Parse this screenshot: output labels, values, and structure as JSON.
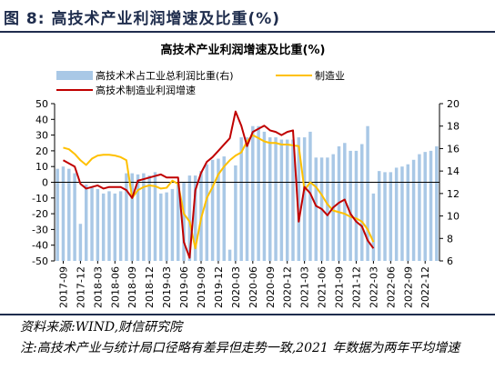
{
  "figure": {
    "label": "图 8:",
    "title": "高技术产业利润增速及比重(%)"
  },
  "source": "资料来源:WIND,财信研究院",
  "note": "注:高技术产业与统计局口径略有差异但走势一致,2021 年数据为两年平均增速",
  "colors": {
    "bar": "#a9c8e6",
    "manufacturing": "#ffc000",
    "hightech": "#c00000",
    "frame": "#1f2d4d"
  },
  "chart_data": {
    "type": "bar+line",
    "title": "高技术产业利润增速及比重(%)",
    "x_tick_labels": [
      "2017-09",
      "2017-12",
      "2018-03",
      "2018-06",
      "2018-09",
      "2018-12",
      "2019-03",
      "2019-06",
      "2019-09",
      "2019-12",
      "2020-03",
      "2020-06",
      "2020-09",
      "2020-12",
      "2021-03",
      "2021-06",
      "2021-09",
      "2021-12",
      "2022-03",
      "2022-06",
      "2022-09",
      "2022-12"
    ],
    "y_left": {
      "ticks": [
        "50",
        "40",
        "30",
        "20",
        "10",
        "0",
        "-10",
        "-20",
        "-30",
        "-40",
        "-50"
      ],
      "range": [
        -50,
        50
      ]
    },
    "y_right": {
      "ticks": [
        "20",
        "18",
        "16",
        "14",
        "12",
        "10",
        "8",
        "6"
      ],
      "range": [
        6,
        20
      ]
    },
    "legend": {
      "bar": "高技术术占工业总利润比重(右)",
      "manufacturing": "制造业",
      "hightech": "高技术制造业利润增速"
    },
    "grid": false,
    "series": [
      {
        "name": "高技术术占工业总利润比重(右)",
        "type": "bar",
        "axis": "right",
        "x_start": "2017-08",
        "values": [
          14.2,
          14.4,
          14.2,
          13.8,
          9.3,
          12.8,
          12.6,
          12.4,
          12.0,
          12.2,
          12.0,
          12.2,
          13.8,
          13.8,
          13.7,
          13.8,
          13.6,
          13.9,
          12.0,
          12.1,
          12.4,
          12.8,
          13.0,
          13.6,
          13.6,
          14.0,
          14.6,
          15.0,
          15.1,
          15.3,
          7.0,
          14.5,
          17.0,
          17.0,
          18.0,
          18.0,
          17.5,
          17.0,
          17.0,
          16.8,
          16.8,
          16.8,
          17.0,
          17.0,
          17.5,
          15.2,
          15.2,
          15.2,
          15.5,
          16.2,
          16.5,
          15.8,
          15.8,
          16.4,
          18.0,
          12.0,
          14.0,
          13.9,
          13.9,
          14.3,
          14.4,
          14.6,
          15.0,
          15.5,
          15.7,
          15.8,
          16.2
        ]
      },
      {
        "name": "制造业",
        "type": "line",
        "axis": "left",
        "x_start": "2017-09",
        "values": [
          22,
          21,
          18,
          14,
          11,
          15,
          17,
          17.5,
          17.5,
          17,
          16,
          14,
          -10,
          -5,
          -3,
          -2,
          -2.5,
          -4,
          -3.5,
          1,
          -1,
          -20,
          -25,
          -42,
          -23,
          -10,
          -3,
          5,
          10,
          14,
          17,
          19,
          26,
          30,
          28,
          26,
          25,
          25,
          24,
          24,
          23.5,
          23,
          -5,
          0,
          -3,
          -8,
          -14,
          -18,
          -19,
          -20,
          -22,
          -23,
          -25,
          -30,
          -38
        ]
      },
      {
        "name": "高技术制造业利润增速",
        "type": "line",
        "axis": "left",
        "x_start": "2017-09",
        "values": [
          14,
          12,
          10,
          -1,
          -4,
          -3,
          -2,
          -4,
          -3,
          -3,
          -3,
          -5,
          -10,
          1,
          2,
          3,
          4,
          5,
          3,
          3,
          3,
          -38,
          -48,
          -5,
          6,
          13,
          16,
          20,
          24,
          28,
          45,
          36,
          23,
          32,
          34,
          36,
          33,
          32,
          30,
          32,
          33,
          -25,
          -3,
          -7,
          -15,
          -17,
          -21,
          -16,
          -13,
          -11,
          -20,
          -25,
          -28,
          -37,
          -42
        ]
      }
    ]
  }
}
